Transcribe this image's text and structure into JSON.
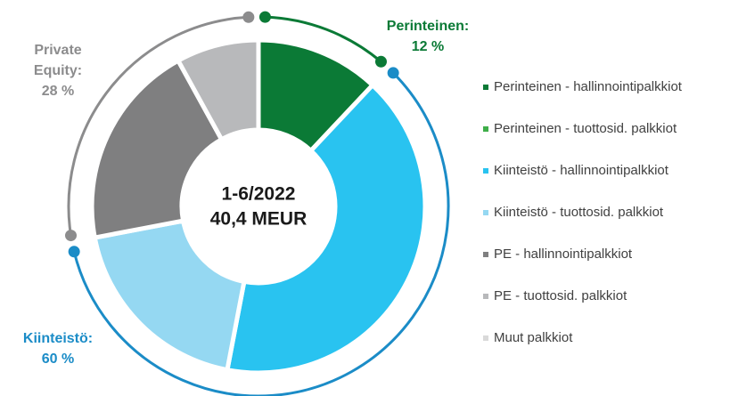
{
  "chart_data": {
    "type": "donut",
    "center_text": [
      "1-6/2022",
      "40,4 MEUR"
    ],
    "categories": [
      "Perinteinen - hallinnointipalkkiot",
      "Perinteinen - tuottosid. palkkiot",
      "Kiinteistö - hallinnointipalkkiot",
      "Kiinteistö - tuottosid. palkkiot",
      "PE - hallinnointipalkkiot",
      "PE - tuottosid. palkkiot",
      "Muut palkkiot"
    ],
    "values": [
      12,
      0,
      41,
      19,
      20,
      8,
      0
    ],
    "colors": [
      "#0b7a36",
      "#3fae49",
      "#29c3f0",
      "#95d8f2",
      "#7f7f80",
      "#b8b9bb",
      "#d9d9d9"
    ],
    "groups": [
      {
        "name_lines": [
          "Perinteinen:"
        ],
        "value": 12,
        "value_label": "12 %",
        "color": "#0b7a36",
        "members": [
          0,
          1
        ]
      },
      {
        "name_lines": [
          "Kiinteistö:"
        ],
        "value": 60,
        "value_label": "60 %",
        "color": "#1b8cc7",
        "members": [
          2,
          3
        ]
      },
      {
        "name_lines": [
          "Private",
          "Equity:"
        ],
        "value": 28,
        "value_label": "28 %",
        "color": "#8c8c8d",
        "members": [
          4,
          5,
          6
        ]
      }
    ]
  }
}
